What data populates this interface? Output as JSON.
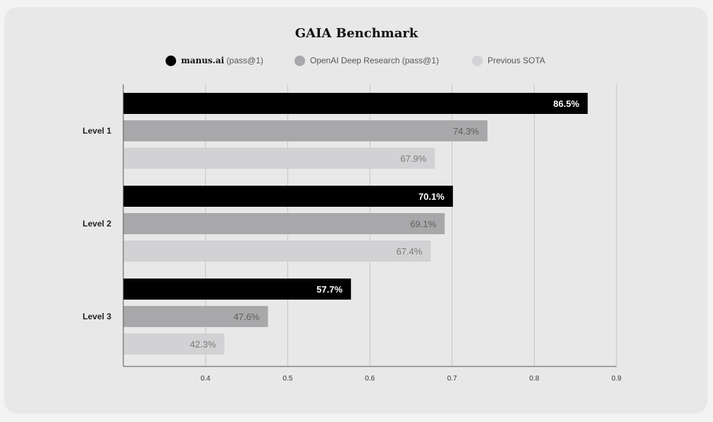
{
  "chart_data": {
    "type": "bar",
    "orientation": "horizontal",
    "title": "GAIA Benchmark",
    "categories": [
      "Level 1",
      "Level 2",
      "Level 3"
    ],
    "series": [
      {
        "name": "manus.ai",
        "name_suffix": "(pass@1)",
        "color": "#000000",
        "label_color": "#ffffff",
        "values": [
          86.5,
          70.1,
          57.7
        ],
        "labels": [
          "86.5%",
          "70.1%",
          "57.7%"
        ]
      },
      {
        "name": "OpenAI Deep Research (pass@1)",
        "name_suffix": "",
        "color": "#a8a8aa",
        "label_color": "#5f5f5f",
        "values": [
          74.3,
          69.1,
          47.6
        ],
        "labels": [
          "74.3%",
          "69.1%",
          "47.6%"
        ]
      },
      {
        "name": "Previous SOTA",
        "name_suffix": "",
        "color": "#d2d2d4",
        "label_color": "#7a7a7a",
        "values": [
          67.9,
          67.4,
          42.3
        ],
        "labels": [
          "67.9%",
          "67.4%",
          "42.3%"
        ]
      }
    ],
    "xlim": [
      0.3,
      0.9
    ],
    "xticks": [
      0.4,
      0.5,
      0.6,
      0.7,
      0.8,
      0.9
    ],
    "xtick_labels": [
      "0.4",
      "0.5",
      "0.6",
      "0.7",
      "0.8",
      "0.9"
    ],
    "grid": true,
    "legend_position": "top-center",
    "xlabel": "",
    "ylabel": ""
  }
}
